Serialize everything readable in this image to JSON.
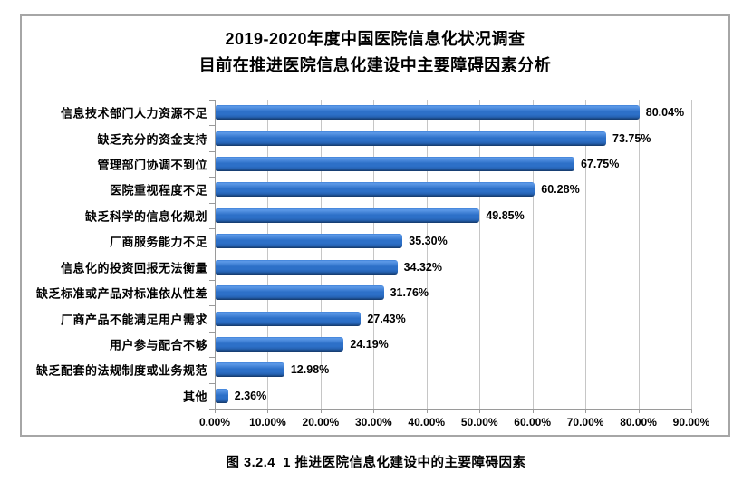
{
  "figure": {
    "caption": "图 3.2.4_1  推进医院信息化建设中的主要障碍因素"
  },
  "chart_data": {
    "type": "bar",
    "orientation": "horizontal",
    "title_lines": [
      "2019-2020年度中国医院信息化状况调查",
      "目前在推进医院信息化建设中主要障碍因素分析"
    ],
    "categories": [
      "信息技术部门人力资源不足",
      "缺乏充分的资金支持",
      "管理部门协调不到位",
      "医院重视程度不足",
      "缺乏科学的信息化规划",
      "厂商服务能力不足",
      "信息化的投资回报无法衡量",
      "缺乏标准或产品对标准依从性差",
      "厂商产品不能满足用户需求",
      "用户参与配合不够",
      "缺乏配套的法规制度或业务规范",
      "其他"
    ],
    "values": [
      80.04,
      73.75,
      67.75,
      60.28,
      49.85,
      35.3,
      34.32,
      31.76,
      27.43,
      24.19,
      12.98,
      2.36
    ],
    "value_labels": [
      "80.04%",
      "73.75%",
      "67.75%",
      "60.28%",
      "49.85%",
      "35.30%",
      "34.32%",
      "31.76%",
      "27.43%",
      "24.19%",
      "12.98%",
      "2.36%"
    ],
    "xlim": [
      0,
      90
    ],
    "x_tick_labels": [
      "0.00%",
      "10.00%",
      "20.00%",
      "30.00%",
      "40.00%",
      "50.00%",
      "60.00%",
      "70.00%",
      "80.00%",
      "90.00%"
    ],
    "grid": true,
    "legend": "none",
    "colors": {
      "bar_highlight": "#5e9ae8",
      "bar_top": "#3f82d8",
      "bar_mid": "#2d70c8",
      "bar_deep": "#2562b2",
      "bar_bottom": "#143767",
      "gridline": "#c6c6c6",
      "axis": "#9a9a9a",
      "frame_border": "#a6a6a6",
      "text": "#000000"
    }
  }
}
